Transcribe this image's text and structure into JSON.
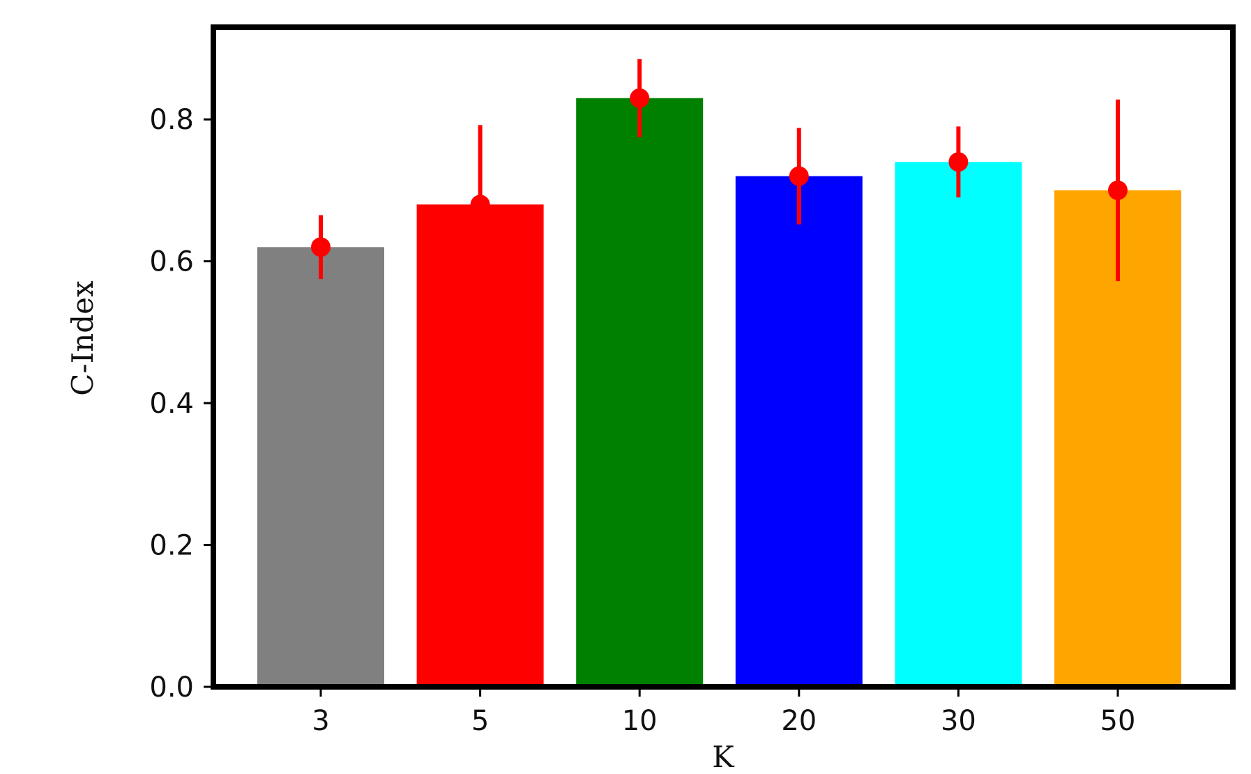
{
  "chart_data": {
    "type": "bar",
    "title": "",
    "xlabel": "K",
    "ylabel": "C-Index",
    "categories": [
      "3",
      "5",
      "10",
      "20",
      "30",
      "50"
    ],
    "values": [
      0.62,
      0.68,
      0.83,
      0.72,
      0.74,
      0.7
    ],
    "error_low": [
      0.575,
      0.68,
      0.775,
      0.652,
      0.69,
      0.572
    ],
    "error_high": [
      0.665,
      0.792,
      0.885,
      0.788,
      0.79,
      0.828
    ],
    "bar_colors": [
      "#808080",
      "#ff0000",
      "#008000",
      "#0000ff",
      "#00ffff",
      "#ffa500"
    ],
    "marker_color": "#ff0000",
    "ylim": [
      0.0,
      0.93
    ],
    "yticks": [
      0.0,
      0.2,
      0.4,
      0.6,
      0.8
    ],
    "ytick_labels": [
      "0.0",
      "0.2",
      "0.4",
      "0.6",
      "0.8"
    ],
    "grid": false,
    "legend": "none"
  }
}
